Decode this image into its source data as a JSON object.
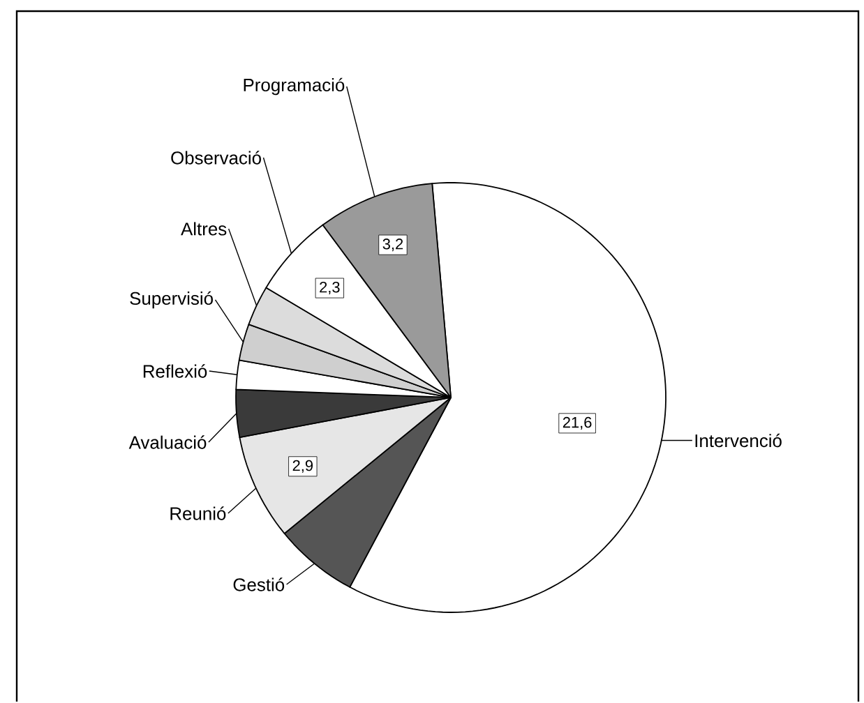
{
  "chart_data": {
    "type": "pie",
    "categories": [
      "Intervenció",
      "Gestió",
      "Reunió",
      "Avaluació",
      "Reflexió",
      "Supervisió",
      "Altres",
      "Observació",
      "Programació"
    ],
    "values": [
      21.6,
      2.3,
      2.9,
      1.3,
      0.8,
      1.0,
      1.1,
      2.3,
      3.2
    ],
    "colors": [
      "#ffffff",
      "#555555",
      "#e6e6e6",
      "#3a3a3a",
      "#ffffff",
      "#cfcfcf",
      "#dcdcdc",
      "#ffffff",
      "#9a9a9a"
    ],
    "value_labels": [
      "21,6",
      null,
      "2,9",
      null,
      null,
      null,
      null,
      "2,3",
      "3,2"
    ]
  }
}
